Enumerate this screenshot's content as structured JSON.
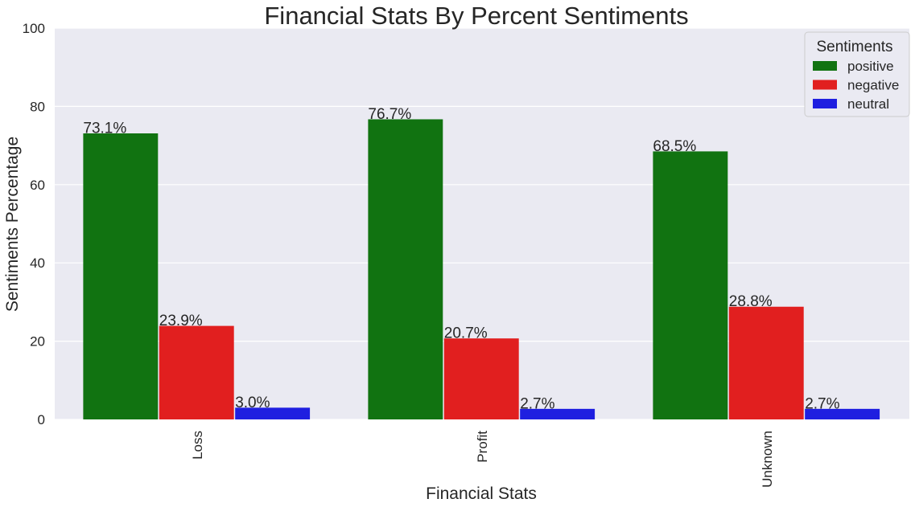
{
  "chart_data": {
    "type": "bar",
    "title": "Financial Stats By Percent Sentiments",
    "xlabel": "Financial Stats",
    "ylabel": "Sentiments Percentage",
    "categories": [
      "Loss",
      "Profit",
      "Unknown"
    ],
    "series": [
      {
        "name": "positive",
        "color": "#117311",
        "values": [
          73.1,
          76.7,
          68.5
        ],
        "labels": [
          "73.1%",
          "76.7%",
          "68.5%"
        ]
      },
      {
        "name": "negative",
        "color": "#e11f1f",
        "values": [
          23.9,
          20.7,
          28.8
        ],
        "labels": [
          "23.9%",
          "20.7%",
          "28.8%"
        ]
      },
      {
        "name": "neutral",
        "color": "#1f1fe0",
        "values": [
          3.0,
          2.7,
          2.7
        ],
        "labels": [
          "3.0%",
          "2.7%",
          "2.7%"
        ]
      }
    ],
    "ylim": [
      0,
      100
    ],
    "yticks": [
      0,
      20,
      40,
      60,
      80,
      100
    ],
    "grid": true,
    "legend": {
      "title": "Sentiments",
      "position": "top-right"
    },
    "background_color": "#eaeaf2",
    "grid_color": "#ffffff"
  }
}
